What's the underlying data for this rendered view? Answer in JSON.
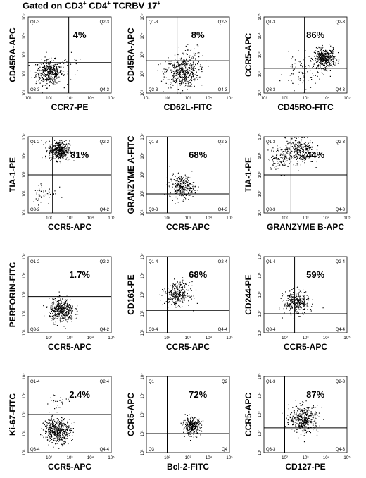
{
  "figure": {
    "title_prefix": "Gated on CD3",
    "title_sup1": "+",
    "title_mid1": " CD4",
    "title_sup2": "+",
    "title_mid2": " TCRBV 17",
    "title_sup3": "+"
  },
  "colors": {
    "dots": "#000000",
    "axes": "#000000",
    "background": "#ffffff"
  },
  "chart_data": [
    {
      "type": "scatter",
      "xlabel": "CCR7-PE",
      "ylabel": "CD45RA-APC",
      "quadrant_labels": [
        "Q1-3",
        "Q2-3",
        "Q3-3",
        "Q4-3"
      ],
      "percent_label": "4%",
      "percent_quadrant": "upper-right",
      "xlim": [
        10,
        100000
      ],
      "ylim": [
        10,
        100000
      ],
      "scale": "log",
      "x_ticks": [
        "10¹",
        "10²",
        "10³",
        "10⁴",
        "10⁵"
      ],
      "y_ticks": [
        "10¹",
        "10²",
        "10³",
        "10⁴",
        "10⁵"
      ],
      "gate_x": 900,
      "gate_y": 400,
      "clusters": [
        {
          "x": 100,
          "y": 130,
          "n": 420,
          "spread": 0.32
        },
        {
          "x": 900,
          "y": 200,
          "n": 20,
          "spread": 0.35
        }
      ]
    },
    {
      "type": "scatter",
      "xlabel": "CD62L-FITC",
      "ylabel": "CD45RA-APC",
      "quadrant_labels": [
        "Q1-3",
        "Q2-3",
        "Q3-3",
        "Q4-3"
      ],
      "percent_label": "8%",
      "percent_quadrant": "upper-right",
      "xlim": [
        10,
        100000
      ],
      "ylim": [
        10,
        100000
      ],
      "scale": "log",
      "x_ticks": [
        "10¹",
        "10²",
        "10³",
        "10⁴",
        "10⁵"
      ],
      "y_ticks": [
        "10¹",
        "10²",
        "10³",
        "10⁴",
        "10⁵"
      ],
      "gate_x": 300,
      "gate_y": 500,
      "clusters": [
        {
          "x": 500,
          "y": 130,
          "n": 420,
          "spread": 0.4
        },
        {
          "x": 1500,
          "y": 1000,
          "n": 40,
          "spread": 0.3
        }
      ]
    },
    {
      "type": "scatter",
      "xlabel": "CD45RO-FITC",
      "ylabel": "CCR5-APC",
      "quadrant_labels": [
        "Q1-3",
        "Q2-3",
        "Q3-3",
        "Q4-3"
      ],
      "percent_label": "86%",
      "percent_quadrant": "upper-right",
      "xlim": [
        10,
        100000
      ],
      "ylim": [
        10,
        100000
      ],
      "scale": "log",
      "x_ticks": [
        "10¹",
        "10²",
        "10³",
        "10⁴",
        "10⁵"
      ],
      "y_ticks": [
        "10¹",
        "10²",
        "10³",
        "10⁴",
        "10⁵"
      ],
      "gate_x": 900,
      "gate_y": 200,
      "clusters": [
        {
          "x": 8000,
          "y": 700,
          "n": 420,
          "spread": 0.25
        },
        {
          "x": 700,
          "y": 120,
          "n": 80,
          "spread": 0.45
        }
      ]
    },
    {
      "type": "scatter",
      "xlabel": "CCR5-APC",
      "ylabel": "TIA-1-PE",
      "quadrant_labels": [
        "Q1-2",
        "Q2-2",
        "Q3-2",
        "Q4-2"
      ],
      "percent_label": "81%",
      "percent_quadrant": "upper-right",
      "xlim": [
        10,
        100000
      ],
      "ylim": [
        10,
        100000
      ],
      "scale": "log",
      "x_ticks": [
        "10²",
        "10³",
        "10⁴",
        "10⁵"
      ],
      "y_ticks": [
        "10¹",
        "10²",
        "10³",
        "10⁴",
        "10⁵"
      ],
      "gate_x": 150,
      "gate_y": 1000,
      "clusters": [
        {
          "x": 300,
          "y": 20000,
          "n": 420,
          "spread": 0.25
        },
        {
          "x": 60,
          "y": 120,
          "n": 50,
          "spread": 0.3
        }
      ]
    },
    {
      "type": "scatter",
      "xlabel": "CCR5-APC",
      "ylabel": "GRANZYME A-FITC",
      "quadrant_labels": [
        "Q1-3",
        "Q2-3",
        "Q3-3",
        "Q4-3"
      ],
      "percent_label": "68%",
      "percent_quadrant": "upper-right",
      "xlim": [
        10,
        100000
      ],
      "ylim": [
        10,
        100000
      ],
      "scale": "log",
      "x_ticks": [
        "10²",
        "10³",
        "10⁴",
        "10⁵"
      ],
      "y_ticks": [
        "10¹",
        "10²",
        "10³",
        "10⁴",
        "10⁵"
      ],
      "gate_x": 100,
      "gate_y": 100,
      "clusters": [
        {
          "x": 500,
          "y": 250,
          "n": 260,
          "spread": 0.3
        }
      ]
    },
    {
      "type": "scatter",
      "xlabel": "GRANZYME B-APC",
      "ylabel": "TIA-1-PE",
      "quadrant_labels": [
        "Q1-3",
        "Q2-3",
        "Q3-3",
        "Q4-3"
      ],
      "percent_label": "44%",
      "percent_quadrant": "upper-right",
      "xlim": [
        10,
        100000
      ],
      "ylim": [
        10,
        100000
      ],
      "scale": "log",
      "x_ticks": [
        "10²",
        "10³",
        "10⁴",
        "10⁵"
      ],
      "y_ticks": [
        "10¹",
        "10²",
        "10³",
        "10⁴",
        "10⁵"
      ],
      "gate_x": 200,
      "gate_y": 1000,
      "clusters": [
        {
          "x": 500,
          "y": 20000,
          "n": 300,
          "spread": 0.35
        },
        {
          "x": 60,
          "y": 8000,
          "n": 120,
          "spread": 0.3
        }
      ]
    },
    {
      "type": "scatter",
      "xlabel": "CCR5-APC",
      "ylabel": "PERFORIN-FITC",
      "quadrant_labels": [
        "Q1-2",
        "Q2-2",
        "Q3-2",
        "Q4-2"
      ],
      "percent_label": "1.7%",
      "percent_quadrant": "upper-right",
      "xlim": [
        10,
        100000
      ],
      "ylim": [
        10,
        100000
      ],
      "scale": "log",
      "x_ticks": [
        "10²",
        "10³",
        "10⁴",
        "10⁵"
      ],
      "y_ticks": [
        "10¹",
        "10²",
        "10³",
        "10⁴",
        "10⁵"
      ],
      "gate_x": 100,
      "gate_y": 800,
      "clusters": [
        {
          "x": 400,
          "y": 150,
          "n": 420,
          "spread": 0.3
        }
      ]
    },
    {
      "type": "scatter",
      "xlabel": "CCR5-APC",
      "ylabel": "CD161-PE",
      "quadrant_labels": [
        "Q1-4",
        "Q2-4",
        "Q3-4",
        "Q4-4"
      ],
      "percent_label": "68%",
      "percent_quadrant": "upper-right",
      "xlim": [
        10,
        100000
      ],
      "ylim": [
        10,
        100000
      ],
      "scale": "log",
      "x_ticks": [
        "10²",
        "10³",
        "10⁴",
        "10⁵"
      ],
      "y_ticks": [
        "10¹",
        "10²",
        "10³",
        "10⁴",
        "10⁵"
      ],
      "gate_x": 100,
      "gate_y": 150,
      "clusters": [
        {
          "x": 300,
          "y": 1200,
          "n": 300,
          "spread": 0.3
        }
      ]
    },
    {
      "type": "scatter",
      "xlabel": "CCR5-APC",
      "ylabel": "CD244-PE",
      "quadrant_labels": [
        "Q1-4",
        "Q2-4",
        "Q3-4",
        "Q4-4"
      ],
      "percent_label": "59%",
      "percent_quadrant": "upper-right",
      "xlim": [
        10,
        100000
      ],
      "ylim": [
        10,
        100000
      ],
      "scale": "log",
      "x_ticks": [
        "10²",
        "10³",
        "10⁴",
        "10⁵"
      ],
      "y_ticks": [
        "10¹",
        "10²",
        "10³",
        "10⁴",
        "10⁵"
      ],
      "gate_x": 300,
      "gate_y": 100,
      "clusters": [
        {
          "x": 350,
          "y": 400,
          "n": 300,
          "spread": 0.3
        }
      ]
    },
    {
      "type": "scatter",
      "xlabel": "CCR5-APC",
      "ylabel": "Ki-67-FITC",
      "quadrant_labels": [
        "Q1-4",
        "Q2-4",
        "Q3-4",
        "Q4-4"
      ],
      "percent_label": "2.4%",
      "percent_quadrant": "upper-right",
      "xlim": [
        10,
        100000
      ],
      "ylim": [
        10,
        100000
      ],
      "scale": "log",
      "x_ticks": [
        "10²",
        "10³",
        "10⁴",
        "10⁵"
      ],
      "y_ticks": [
        "10¹",
        "10²",
        "10³",
        "10⁴",
        "10⁵"
      ],
      "gate_x": 100,
      "gate_y": 1000,
      "clusters": [
        {
          "x": 250,
          "y": 150,
          "n": 450,
          "spread": 0.32
        },
        {
          "x": 200,
          "y": 4000,
          "n": 25,
          "spread": 0.3
        }
      ]
    },
    {
      "type": "scatter",
      "xlabel": "Bcl-2-FITC",
      "ylabel": "CCR5-APC",
      "quadrant_labels": [
        "Q1",
        "Q2",
        "Q3",
        "Q4"
      ],
      "percent_label": "72%",
      "percent_quadrant": "upper-right",
      "xlim": [
        10,
        100000
      ],
      "ylim": [
        10,
        100000
      ],
      "scale": "log",
      "x_ticks": [
        "10²",
        "10³",
        "10⁴",
        "10⁵"
      ],
      "y_ticks": [
        "10¹",
        "10²",
        "10³",
        "10⁴",
        "10⁵"
      ],
      "gate_x": 100,
      "gate_y": 100,
      "clusters": [
        {
          "x": 1500,
          "y": 250,
          "n": 300,
          "spread": 0.22
        }
      ]
    },
    {
      "type": "scatter",
      "xlabel": "CD127-PE",
      "ylabel": "CCR5-APC",
      "quadrant_labels": [
        "Q1-3",
        "Q2-3",
        "Q3-3",
        "Q4-3"
      ],
      "percent_label": "87%",
      "percent_quadrant": "upper-right",
      "xlim": [
        10,
        100000
      ],
      "ylim": [
        10,
        100000
      ],
      "scale": "log",
      "x_ticks": [
        "10²",
        "10³",
        "10⁴",
        "10⁵"
      ],
      "y_ticks": [
        "10¹",
        "10²",
        "10³",
        "10⁴",
        "10⁵"
      ],
      "gate_x": 100,
      "gate_y": 200,
      "clusters": [
        {
          "x": 800,
          "y": 600,
          "n": 380,
          "spread": 0.35
        }
      ]
    }
  ]
}
